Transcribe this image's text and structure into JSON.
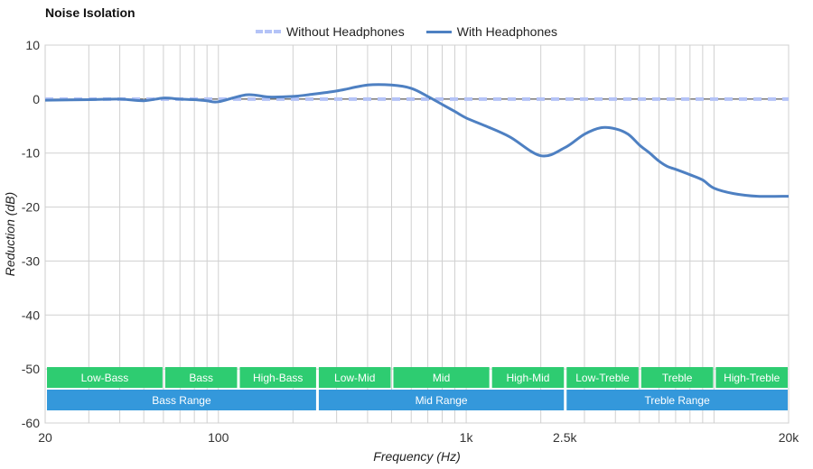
{
  "chart_data": {
    "type": "line",
    "title": "Noise Isolation",
    "xlabel": "Frequency (Hz)",
    "ylabel": "Reduction (dB)",
    "x_scale": "log",
    "xlim": [
      20,
      20000
    ],
    "ylim": [
      -60,
      10
    ],
    "y_ticks": [
      10,
      0,
      -10,
      -20,
      -30,
      -40,
      -50,
      -60
    ],
    "y_tick_labels": [
      "10",
      "0",
      "-10",
      "-20",
      "-30",
      "-40",
      "-50",
      "-60"
    ],
    "x_ticks": [
      20,
      100,
      1000,
      2500,
      20000
    ],
    "x_tick_labels": [
      "20",
      "100",
      "1k",
      "2.5k",
      "20k"
    ],
    "x_gridlines": [
      30,
      40,
      50,
      60,
      70,
      80,
      90,
      100,
      200,
      300,
      400,
      500,
      600,
      700,
      800,
      900,
      1000,
      2000,
      3000,
      4000,
      5000,
      6000,
      7000,
      8000,
      9000,
      10000,
      20000
    ],
    "grid": true,
    "legend_position": "top-center",
    "series": [
      {
        "name": "Without Headphones",
        "style": "dashed",
        "color": "#b4c3f7",
        "x": [
          20,
          20000
        ],
        "y": [
          0,
          0
        ]
      },
      {
        "name": "With Headphones",
        "style": "solid",
        "color": "#4e80c2",
        "x": [
          20,
          30,
          40,
          50,
          60,
          70,
          80,
          90,
          100,
          130,
          160,
          200,
          230,
          300,
          400,
          500,
          600,
          700,
          800,
          900,
          1000,
          1200,
          1500,
          2000,
          2500,
          3000,
          3500,
          4000,
          4500,
          5000,
          5500,
          6000,
          6500,
          7000,
          8000,
          9000,
          10000,
          12000,
          15000,
          20000
        ],
        "y": [
          -0.2,
          -0.1,
          0.0,
          -0.3,
          0.2,
          0.0,
          -0.1,
          -0.3,
          -0.5,
          0.8,
          0.4,
          0.5,
          0.8,
          1.5,
          2.6,
          2.6,
          2.0,
          0.5,
          -1.0,
          -2.3,
          -3.5,
          -5.0,
          -7.0,
          -10.5,
          -9.0,
          -6.5,
          -5.3,
          -5.5,
          -6.5,
          -8.5,
          -10.0,
          -11.5,
          -12.5,
          -13.0,
          -14.0,
          -15.0,
          -16.5,
          -17.5,
          -18.0,
          -18.0
        ]
      }
    ],
    "bands": [
      {
        "row": 1,
        "label": "Low-Bass",
        "from": 20,
        "to": 60,
        "color": "#2ecc71"
      },
      {
        "row": 1,
        "label": "Bass",
        "from": 60,
        "to": 120,
        "color": "#2ecc71"
      },
      {
        "row": 1,
        "label": "High-Bass",
        "from": 120,
        "to": 250,
        "color": "#2ecc71"
      },
      {
        "row": 1,
        "label": "Low-Mid",
        "from": 250,
        "to": 500,
        "color": "#2ecc71"
      },
      {
        "row": 1,
        "label": "Mid",
        "from": 500,
        "to": 1250,
        "color": "#2ecc71"
      },
      {
        "row": 1,
        "label": "High-Mid",
        "from": 1250,
        "to": 2500,
        "color": "#2ecc71"
      },
      {
        "row": 1,
        "label": "Low-Treble",
        "from": 2500,
        "to": 5000,
        "color": "#2ecc71"
      },
      {
        "row": 1,
        "label": "Treble",
        "from": 5000,
        "to": 10000,
        "color": "#2ecc71"
      },
      {
        "row": 1,
        "label": "High-Treble",
        "from": 10000,
        "to": 20000,
        "color": "#2ecc71"
      },
      {
        "row": 2,
        "label": "Bass Range",
        "from": 20,
        "to": 250,
        "color": "#3498db"
      },
      {
        "row": 2,
        "label": "Mid Range",
        "from": 250,
        "to": 2500,
        "color": "#3498db"
      },
      {
        "row": 2,
        "label": "Treble Range",
        "from": 2500,
        "to": 20000,
        "color": "#3498db"
      }
    ]
  }
}
